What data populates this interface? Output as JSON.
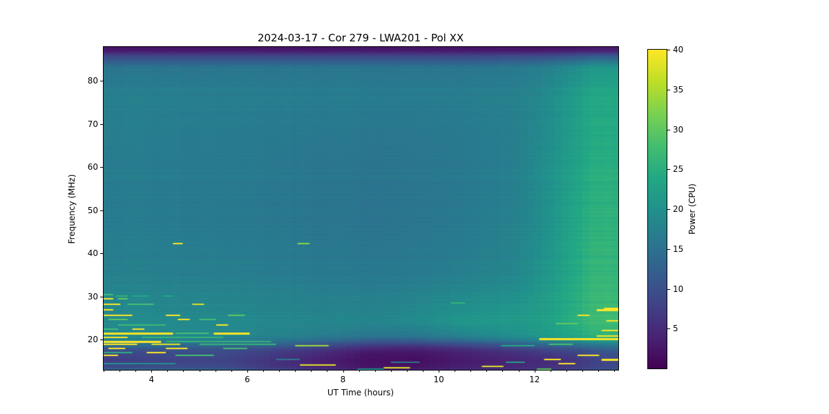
{
  "chart_data": {
    "type": "heatmap",
    "title": "2024-03-17 - Cor 279 - LWA201 - Pol XX",
    "xlabel": "UT Time (hours)",
    "ylabel": "Frequency (MHz)",
    "colorbar_label": "Power (CPU)",
    "x_range": [
      3.0,
      13.75
    ],
    "y_range": [
      12.96,
      87.84
    ],
    "x_ticks": [
      4,
      6,
      8,
      10,
      12
    ],
    "x_minor_step": 0.3333,
    "y_ticks": [
      20,
      30,
      40,
      50,
      60,
      70,
      80
    ],
    "colorbar_ticks": [
      5,
      10,
      15,
      20,
      25,
      30,
      35,
      40
    ],
    "clim": [
      0,
      40
    ],
    "colormap": "viridis",
    "colormap_stops": [
      [
        0.0,
        [
          68,
          1,
          84
        ]
      ],
      [
        0.1,
        [
          72,
          36,
          117
        ]
      ],
      [
        0.2,
        [
          64,
          67,
          135
        ]
      ],
      [
        0.3,
        [
          52,
          94,
          141
        ]
      ],
      [
        0.4,
        [
          41,
          120,
          142
        ]
      ],
      [
        0.5,
        [
          33,
          145,
          140
        ]
      ],
      [
        0.6,
        [
          34,
          168,
          132
        ]
      ],
      [
        0.7,
        [
          68,
          190,
          112
        ]
      ],
      [
        0.8,
        [
          122,
          209,
          81
        ]
      ],
      [
        0.9,
        [
          189,
          222,
          38
        ]
      ],
      [
        1.0,
        [
          253,
          231,
          37
        ]
      ]
    ],
    "grid_note": "background power field; t = UT hours columns, f = MHz rows (top to bottom), power in CPU units",
    "background_grid": {
      "t": [
        3.0,
        3.5,
        4.5,
        5.5,
        6.5,
        7.5,
        8.5,
        9.5,
        10.5,
        11.5,
        12.2,
        12.8,
        13.3,
        13.75
      ],
      "f": [
        87.8,
        86.9,
        85.6,
        83,
        78,
        70,
        60,
        50,
        40,
        33,
        28,
        24,
        20.5,
        18.5,
        17.5,
        16.5,
        15,
        13.5,
        12.6
      ],
      "power": [
        [
          2,
          2,
          2,
          2,
          2,
          2,
          2,
          2,
          2,
          2,
          2,
          2,
          2.5,
          2.5
        ],
        [
          3,
          3,
          3,
          3,
          3,
          3,
          3,
          3,
          3,
          3,
          3,
          3.5,
          4,
          4
        ],
        [
          9,
          9,
          9,
          9,
          9,
          9,
          9,
          9,
          9,
          9.5,
          10,
          11,
          12,
          12
        ],
        [
          15.5,
          15.5,
          15.5,
          15.5,
          15.5,
          15.5,
          15.5,
          15.5,
          15.5,
          16,
          17,
          19,
          21,
          21
        ],
        [
          17,
          17,
          17,
          16.8,
          16.8,
          16.6,
          16.6,
          16.6,
          16.8,
          17.2,
          18.5,
          21,
          23.5,
          23.5
        ],
        [
          17.2,
          17.2,
          17,
          16.8,
          16.6,
          16.4,
          16.2,
          16.2,
          16.6,
          17.2,
          19,
          22,
          24.5,
          24.5
        ],
        [
          16.8,
          16.8,
          16.6,
          16.4,
          16.2,
          15.8,
          15.6,
          15.8,
          16.2,
          17,
          19.5,
          22.5,
          25,
          25
        ],
        [
          16.6,
          16.6,
          16.4,
          16.2,
          16,
          15.6,
          15.4,
          15.6,
          16.2,
          17.2,
          19.5,
          23,
          25.5,
          25.5
        ],
        [
          17,
          17,
          16.8,
          16.6,
          16.4,
          16,
          15.8,
          16,
          16.6,
          17.6,
          20,
          23.5,
          26,
          26
        ],
        [
          17.6,
          17.6,
          17.4,
          17.2,
          17,
          16.6,
          16.4,
          16.8,
          17.6,
          18.6,
          21,
          24,
          26.5,
          26.5
        ],
        [
          18.6,
          18.6,
          18.4,
          18.2,
          18,
          17.6,
          17.6,
          18.2,
          19.5,
          20.5,
          22,
          24.5,
          27,
          27
        ],
        [
          19,
          19,
          19,
          18.8,
          18.6,
          18.2,
          18.2,
          19,
          21,
          21.5,
          22.5,
          25,
          27.5,
          27.5
        ],
        [
          18.5,
          18.5,
          18.5,
          18.2,
          17.5,
          16.5,
          15,
          15,
          17,
          19,
          21,
          23,
          25,
          25
        ],
        [
          14,
          14,
          13.5,
          13,
          12,
          9,
          6.5,
          6,
          8,
          10,
          12,
          13,
          15,
          16
        ],
        [
          10,
          10,
          10,
          9.5,
          8,
          6,
          3.5,
          3,
          4.5,
          6.5,
          8,
          9,
          11,
          12
        ],
        [
          8,
          8.5,
          9,
          9,
          7,
          4.5,
          2.2,
          2,
          3.5,
          5,
          6.5,
          7.5,
          9.5,
          10
        ],
        [
          7,
          7.5,
          8,
          8,
          6,
          3.5,
          1.8,
          1.5,
          3,
          4,
          5,
          6,
          8,
          8.5
        ],
        [
          9,
          9,
          9.5,
          9,
          6.5,
          4,
          2.2,
          2,
          3.5,
          4.5,
          5.5,
          6.5,
          8.5,
          9
        ],
        [
          18,
          18,
          17,
          16,
          12,
          9,
          6,
          6,
          7,
          8,
          9,
          10,
          12,
          13
        ]
      ]
    },
    "streak_format": "[t_start_h, t_end_h, freq_MHz, power, thickness_px] - narrowband RFI lines",
    "rfi_streaks": [
      [
        3.0,
        3.2,
        30.6,
        28,
        2
      ],
      [
        3.25,
        3.5,
        30.2,
        26,
        2
      ],
      [
        3.6,
        3.95,
        30.2,
        24,
        2
      ],
      [
        4.25,
        4.45,
        30.2,
        24,
        2
      ],
      [
        3.0,
        3.2,
        29.5,
        40,
        2
      ],
      [
        3.3,
        3.5,
        29.5,
        30,
        2
      ],
      [
        3.0,
        3.35,
        28.3,
        40,
        2
      ],
      [
        3.5,
        4.05,
        28.3,
        28,
        2
      ],
      [
        4.85,
        5.1,
        28.3,
        38,
        2
      ],
      [
        3.0,
        3.2,
        27.1,
        40,
        2
      ],
      [
        3.0,
        3.6,
        25.9,
        40,
        2
      ],
      [
        4.3,
        4.6,
        25.9,
        40,
        2
      ],
      [
        5.6,
        5.95,
        25.9,
        30,
        2
      ],
      [
        3.1,
        3.5,
        24.7,
        30,
        2
      ],
      [
        4.55,
        4.8,
        24.7,
        40,
        2
      ],
      [
        5.0,
        5.35,
        24.7,
        28,
        2
      ],
      [
        3.3,
        4.3,
        23.5,
        27,
        2
      ],
      [
        5.35,
        5.6,
        23.5,
        40,
        2
      ],
      [
        3.0,
        3.3,
        22.6,
        28,
        2
      ],
      [
        3.6,
        3.85,
        22.6,
        40,
        2
      ],
      [
        3.0,
        4.45,
        21.6,
        40,
        3
      ],
      [
        4.5,
        5.2,
        21.6,
        28,
        2
      ],
      [
        5.3,
        6.05,
        21.6,
        40,
        3
      ],
      [
        3.0,
        3.5,
        20.7,
        40,
        2
      ],
      [
        3.8,
        5.5,
        20.7,
        26,
        2
      ],
      [
        13.3,
        13.75,
        20.9,
        40,
        2
      ],
      [
        3.0,
        4.2,
        19.8,
        40,
        3
      ],
      [
        4.3,
        6.5,
        19.8,
        26,
        2
      ],
      [
        12.1,
        13.75,
        20.3,
        40,
        3
      ],
      [
        3.0,
        3.7,
        18.9,
        40,
        2
      ],
      [
        4.0,
        4.6,
        18.9,
        38,
        2
      ],
      [
        5.0,
        6.6,
        18.9,
        26,
        2
      ],
      [
        7.0,
        7.7,
        18.7,
        34,
        2
      ],
      [
        3.1,
        3.45,
        18.0,
        40,
        2
      ],
      [
        4.3,
        4.75,
        18.0,
        40,
        2
      ],
      [
        5.5,
        6.0,
        18.0,
        28,
        2
      ],
      [
        3.9,
        4.3,
        17.2,
        40,
        2
      ],
      [
        3.0,
        3.6,
        17.2,
        25,
        2
      ],
      [
        3.0,
        3.3,
        16.4,
        40,
        2
      ],
      [
        4.5,
        5.3,
        16.4,
        28,
        2
      ],
      [
        12.9,
        13.35,
        16.6,
        40,
        2
      ],
      [
        13.4,
        13.75,
        15.5,
        40,
        3
      ],
      [
        12.2,
        12.55,
        15.5,
        40,
        2
      ],
      [
        3.0,
        4.5,
        14.6,
        20,
        2
      ],
      [
        6.6,
        7.1,
        15.6,
        16,
        2
      ],
      [
        7.1,
        7.85,
        14.4,
        38,
        2
      ],
      [
        8.85,
        9.4,
        13.6,
        38,
        2
      ],
      [
        10.9,
        11.35,
        13.8,
        38,
        2
      ],
      [
        12.5,
        12.85,
        14.6,
        40,
        2
      ],
      [
        9.0,
        9.6,
        14.8,
        16,
        2
      ],
      [
        11.4,
        11.8,
        15.0,
        22,
        2
      ],
      [
        12.05,
        12.35,
        13.4,
        30,
        2
      ],
      [
        3.0,
        5.9,
        12.9,
        22,
        3
      ],
      [
        6.3,
        7.0,
        12.9,
        24,
        2
      ],
      [
        8.3,
        8.85,
        13.2,
        20,
        2
      ],
      [
        13.3,
        13.75,
        13.0,
        36,
        2
      ],
      [
        4.45,
        4.65,
        42.4,
        40,
        2
      ],
      [
        7.05,
        7.3,
        42.3,
        33,
        2
      ],
      [
        10.25,
        10.55,
        28.6,
        26,
        2
      ],
      [
        13.45,
        13.75,
        27.5,
        40,
        2
      ],
      [
        13.3,
        13.75,
        26.9,
        40,
        3
      ],
      [
        12.9,
        13.15,
        25.9,
        40,
        2
      ],
      [
        13.5,
        13.75,
        24.4,
        40,
        2
      ],
      [
        12.45,
        12.9,
        23.9,
        30,
        2
      ],
      [
        13.4,
        13.75,
        22.3,
        40,
        2
      ],
      [
        12.3,
        12.8,
        19.0,
        28,
        2
      ],
      [
        11.3,
        12.0,
        18.6,
        24,
        2
      ]
    ]
  }
}
